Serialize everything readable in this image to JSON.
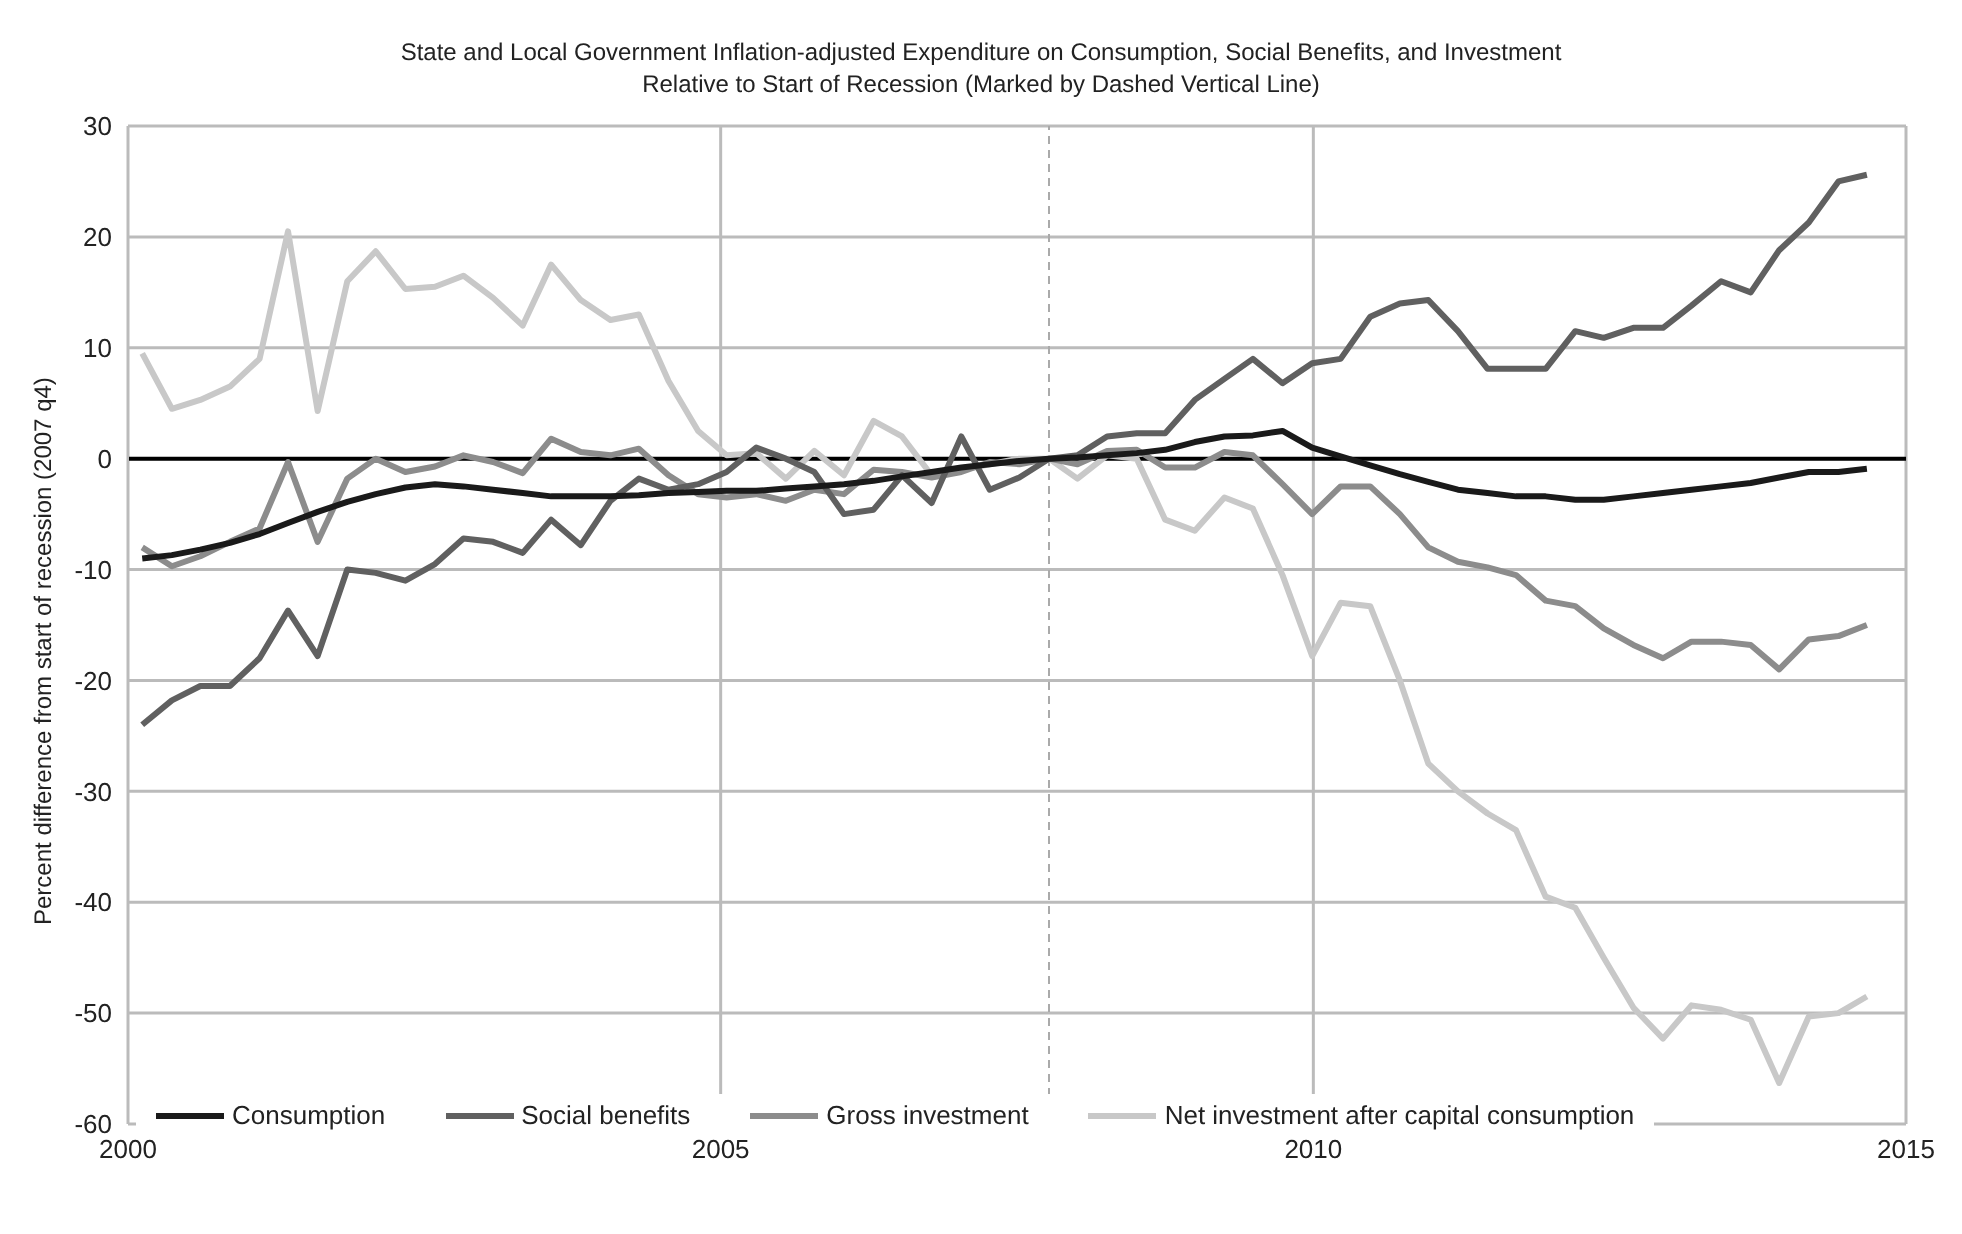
{
  "chart_data": {
    "type": "line",
    "title": "State and Local Government Inflation-adjusted Expenditure on Consumption, Social Benefits, and Investment",
    "subtitle": "Relative to Start of Recession (Marked by Dashed Vertical Line)",
    "ylabel": "Percent difference from start of recession (2007 q4)",
    "x": [
      2000.12,
      2000.37,
      2000.61,
      2000.86,
      2001.11,
      2001.35,
      2001.6,
      2001.85,
      2002.09,
      2002.34,
      2002.59,
      2002.83,
      2003.08,
      2003.33,
      2003.57,
      2003.82,
      2004.07,
      2004.31,
      2004.56,
      2004.81,
      2005.05,
      2005.3,
      2005.55,
      2005.79,
      2006.04,
      2006.29,
      2006.53,
      2006.78,
      2007.03,
      2007.27,
      2007.52,
      2007.77,
      2008.01,
      2008.26,
      2008.51,
      2008.75,
      2009.0,
      2009.25,
      2009.49,
      2009.74,
      2009.99,
      2010.23,
      2010.48,
      2010.73,
      2010.97,
      2011.22,
      2011.47,
      2011.71,
      2011.96,
      2012.21,
      2012.45,
      2012.7,
      2012.95,
      2013.19,
      2013.44,
      2013.69,
      2013.93,
      2014.18,
      2014.43,
      2014.67
    ],
    "series": [
      {
        "name": "Consumption",
        "color": "#1a1a1a",
        "values": [
          -9,
          -8.7,
          -8.2,
          -7.6,
          -6.8,
          -5.8,
          -4.8,
          -3.9,
          -3.2,
          -2.6,
          -2.3,
          -2.5,
          -2.8,
          -3.1,
          -3.4,
          -3.4,
          -3.4,
          -3.3,
          -3.1,
          -3,
          -2.9,
          -2.9,
          -2.7,
          -2.5,
          -2.3,
          -2,
          -1.6,
          -1.2,
          -0.8,
          -0.5,
          -0.2,
          0,
          0.1,
          0.3,
          0.5,
          0.8,
          1.5,
          2,
          2.1,
          2.5,
          1,
          0.2,
          -0.6,
          -1.4,
          -2.1,
          -2.8,
          -3.1,
          -3.4,
          -3.4,
          -3.7,
          -3.7,
          -3.4,
          -3.1,
          -2.8,
          -2.5,
          -2.2,
          -1.7,
          -1.2,
          -1.2,
          -0.9
        ]
      },
      {
        "name": "Social benefits",
        "color": "#606060",
        "values": [
          -24,
          -21.8,
          -20.5,
          -20.5,
          -18,
          -13.7,
          -17.8,
          -10,
          -10.3,
          -11,
          -9.5,
          -7.2,
          -7.5,
          -8.5,
          -5.5,
          -7.8,
          -3.8,
          -1.8,
          -2.8,
          -2.3,
          -1.2,
          1,
          0,
          -1.2,
          -5,
          -4.6,
          -1.5,
          -4,
          2,
          -2.8,
          -1.7,
          0,
          0.3,
          2,
          2.3,
          2.3,
          5.3,
          7.2,
          9,
          6.8,
          8.6,
          9,
          12.8,
          14,
          14.3,
          11.5,
          8.1,
          8.1,
          8.1,
          11.5,
          10.9,
          11.8,
          11.8,
          13.8,
          16,
          15,
          18.8,
          21.3,
          25,
          25.6
        ]
      },
      {
        "name": "Gross investment",
        "color": "#8c8c8c",
        "values": [
          -8,
          -9.7,
          -8.8,
          -7.5,
          -6.3,
          -0.3,
          -7.5,
          -1.8,
          0,
          -1.2,
          -0.7,
          0.3,
          -0.3,
          -1.3,
          1.8,
          0.6,
          0.3,
          0.9,
          -1.5,
          -3.2,
          -3.5,
          -3.2,
          -3.8,
          -2.8,
          -3.2,
          -1,
          -1.2,
          -1.7,
          -1.2,
          -0.3,
          -0.5,
          0,
          -0.5,
          0.7,
          0.8,
          -0.8,
          -0.8,
          0.6,
          0.3,
          -2.3,
          -5,
          -2.5,
          -2.5,
          -5,
          -8,
          -9.3,
          -9.8,
          -10.5,
          -12.8,
          -13.3,
          -15.3,
          -16.8,
          -18,
          -16.5,
          -16.5,
          -16.8,
          -19,
          -16.3,
          -16,
          -15
        ]
      },
      {
        "name": "Net investment after capital consumption",
        "color": "#c8c8c8",
        "values": [
          9.5,
          4.5,
          5.3,
          6.5,
          9,
          20.5,
          4.3,
          16,
          18.7,
          15.3,
          15.5,
          16.5,
          14.5,
          12,
          17.5,
          14.3,
          12.5,
          13,
          7,
          2.5,
          0.3,
          0.5,
          -1.8,
          0.7,
          -1.5,
          3.4,
          2,
          -1.5,
          -1,
          -0.5,
          0,
          0,
          -1.8,
          0.3,
          0,
          -5.5,
          -6.5,
          -3.5,
          -4.5,
          -10.5,
          -17.8,
          -13,
          -13.3,
          -20,
          -27.5,
          -30,
          -32,
          -33.5,
          -39.5,
          -40.5,
          -45,
          -49.5,
          -52.3,
          -49.3,
          -49.7,
          -50.6,
          -56.3,
          -50.3,
          -50,
          -48.5
        ]
      }
    ],
    "xlim": [
      2000,
      2015
    ],
    "xticks": [
      2000,
      2005,
      2010,
      2015
    ],
    "ylim": [
      -60,
      30
    ],
    "yticks": [
      -60,
      -50,
      -40,
      -30,
      -20,
      -10,
      0,
      10,
      20,
      30
    ],
    "ref_lines": [
      {
        "axis": "y",
        "value": 0,
        "color": "#000000",
        "line_style": "solid"
      },
      {
        "axis": "x",
        "value": 2007.77,
        "color": "#aaaaaa",
        "line_style": "dashed"
      }
    ],
    "grid": true,
    "legend": "bottom",
    "marker": "none",
    "line_style": "solid"
  }
}
